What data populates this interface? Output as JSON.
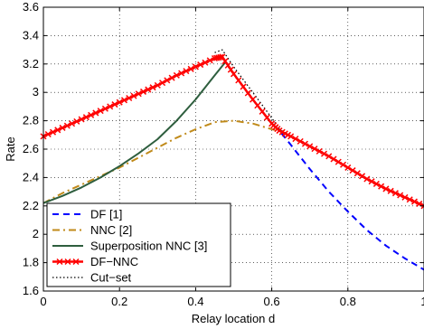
{
  "chart_data": {
    "type": "line",
    "title": "",
    "xlabel": "Relay location d",
    "ylabel": "Rate",
    "xlim": [
      0,
      1
    ],
    "ylim": [
      1.6,
      3.6
    ],
    "x_ticks": [
      "0",
      "0.2",
      "0.4",
      "0.6",
      "0.8",
      "1"
    ],
    "y_ticks": [
      "1.6",
      "1.8",
      "2",
      "2.2",
      "2.4",
      "2.6",
      "2.8",
      "3",
      "3.2",
      "3.4",
      "3.6"
    ],
    "grid": true,
    "legend_position": "bottom-left",
    "series": [
      {
        "name": "DF [1]",
        "color": "#0000ff",
        "style": "dashed",
        "x": [
          0,
          0.05,
          0.1,
          0.15,
          0.2,
          0.25,
          0.3,
          0.35,
          0.4,
          0.45,
          0.47,
          0.5,
          0.55,
          0.6,
          0.62,
          0.65,
          0.7,
          0.75,
          0.8,
          0.85,
          0.9,
          0.95,
          1.0
        ],
        "y": [
          2.69,
          2.75,
          2.81,
          2.87,
          2.93,
          2.99,
          3.05,
          3.12,
          3.18,
          3.24,
          3.25,
          3.13,
          2.95,
          2.78,
          2.73,
          2.63,
          2.46,
          2.3,
          2.16,
          2.03,
          1.92,
          1.83,
          1.75
        ]
      },
      {
        "name": "NNC [2]",
        "color": "#c08a1a",
        "style": "dashdot",
        "x": [
          0,
          0.05,
          0.1,
          0.15,
          0.2,
          0.25,
          0.3,
          0.35,
          0.4,
          0.45,
          0.5,
          0.55,
          0.6,
          0.62
        ],
        "y": [
          2.22,
          2.29,
          2.35,
          2.41,
          2.47,
          2.54,
          2.61,
          2.68,
          2.74,
          2.79,
          2.8,
          2.78,
          2.74,
          2.73
        ]
      },
      {
        "name": "Superposition NNC [3]",
        "color": "#2e5e3e",
        "style": "solid",
        "x": [
          0,
          0.05,
          0.1,
          0.15,
          0.2,
          0.25,
          0.3,
          0.35,
          0.4,
          0.45,
          0.48
        ],
        "y": [
          2.22,
          2.27,
          2.33,
          2.4,
          2.48,
          2.57,
          2.67,
          2.8,
          2.95,
          3.12,
          3.22
        ]
      },
      {
        "name": "DF−NNC",
        "color": "#ff0000",
        "style": "solid-marker",
        "x": [
          0,
          0.05,
          0.1,
          0.15,
          0.2,
          0.25,
          0.3,
          0.35,
          0.4,
          0.45,
          0.47,
          0.5,
          0.55,
          0.6,
          0.62,
          0.65,
          0.7,
          0.75,
          0.8,
          0.85,
          0.9,
          0.95,
          1.0
        ],
        "y": [
          2.69,
          2.75,
          2.81,
          2.87,
          2.93,
          2.99,
          3.05,
          3.12,
          3.18,
          3.24,
          3.25,
          3.13,
          2.95,
          2.78,
          2.73,
          2.69,
          2.62,
          2.55,
          2.47,
          2.39,
          2.32,
          2.26,
          2.2
        ]
      },
      {
        "name": "Cut−set",
        "color": "#000000",
        "style": "dotted",
        "x": [
          0.45,
          0.47,
          0.5,
          0.55,
          0.6,
          0.62,
          0.65,
          0.7,
          0.75,
          0.8,
          0.85,
          0.9,
          0.95,
          1.0
        ],
        "y": [
          3.28,
          3.3,
          3.18,
          3.0,
          2.82,
          2.74,
          2.69,
          2.62,
          2.55,
          2.47,
          2.39,
          2.32,
          2.26,
          2.2
        ]
      }
    ]
  }
}
